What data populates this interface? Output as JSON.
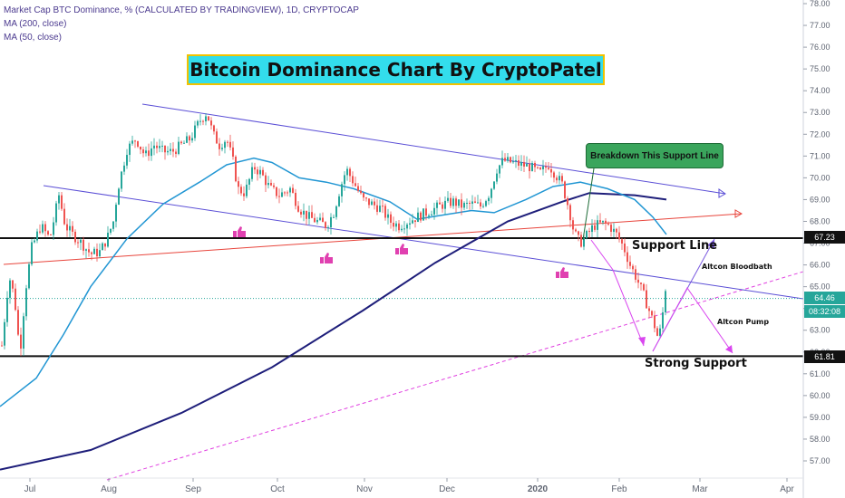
{
  "legend": {
    "symbol_line": "Market Cap BTC Dominance, % (CALCULATED BY TRADINGVIEW), 1D, CRYPTOCAP",
    "ma200": "MA (200, close)",
    "ma50": "MA (50, close)"
  },
  "title": "Bitcoin Dominance Chart By CryptoPatel",
  "annotations": {
    "breakdown": "Breakdown This Support Line",
    "support_line": "Support Line",
    "strong_support": "Strong Support",
    "altcoin_bloodbath": "Altcon Bloodbath",
    "altcoin_pump": "Altcon Pump"
  },
  "price_tags": {
    "resistance": "67.23",
    "current": "64.46",
    "countdown": "08:32:08",
    "support": "61.81"
  },
  "colors": {
    "up": "#26a69a",
    "down": "#ef5350",
    "ma200": "#1e1e7a",
    "ma50": "#2196d3",
    "channel": "#5b4fd6",
    "trend_red": "#e8453c",
    "dashed": "#e040e0",
    "arrows": "#d946ef",
    "title_bg": "#33ddec",
    "callout_bg": "#3aa55c",
    "thumb": "#e040b0"
  },
  "chart_data": {
    "type": "candlestick",
    "x_tick_labels": [
      "Jul",
      "Aug",
      "Sep",
      "Oct",
      "Nov",
      "Dec",
      "2020",
      "Feb",
      "Mar",
      "Apr"
    ],
    "y_tick_labels": [
      "78.00",
      "77.00",
      "76.00",
      "75.00",
      "74.00",
      "73.00",
      "72.00",
      "71.00",
      "70.00",
      "69.00",
      "68.00",
      "67.00",
      "66.00",
      "65.00",
      "64.00",
      "63.00",
      "62.00",
      "61.00",
      "60.00",
      "59.00",
      "58.00",
      "57.00"
    ],
    "ylim": [
      56.5,
      78.2
    ],
    "horizontal_levels": [
      67.23,
      61.81
    ],
    "last_price": 64.46,
    "close_path": [
      [
        0,
        61.5
      ],
      [
        5,
        63.5
      ],
      [
        10,
        65.5
      ],
      [
        16,
        64.5
      ],
      [
        22,
        61.9
      ],
      [
        28,
        64.8
      ],
      [
        35,
        66.8
      ],
      [
        45,
        67.8
      ],
      [
        55,
        67.2
      ],
      [
        65,
        69.2
      ],
      [
        72,
        67.8
      ],
      [
        80,
        67.4
      ],
      [
        90,
        67.0
      ],
      [
        100,
        66.5
      ],
      [
        110,
        66.6
      ],
      [
        118,
        67.2
      ],
      [
        125,
        68.0
      ],
      [
        130,
        69.5
      ],
      [
        140,
        71.3
      ],
      [
        150,
        71.8
      ],
      [
        160,
        71.0
      ],
      [
        170,
        71.5
      ],
      [
        180,
        71.2
      ],
      [
        190,
        71.2
      ],
      [
        200,
        71.5
      ],
      [
        210,
        71.8
      ],
      [
        220,
        72.6
      ],
      [
        228,
        73.0
      ],
      [
        235,
        72.0
      ],
      [
        242,
        71.5
      ],
      [
        250,
        71.8
      ],
      [
        258,
        70.6
      ],
      [
        262,
        69.5
      ],
      [
        270,
        69.3
      ],
      [
        280,
        70.5
      ],
      [
        288,
        70.2
      ],
      [
        298,
        69.5
      ],
      [
        308,
        69.2
      ],
      [
        320,
        69.5
      ],
      [
        330,
        68.6
      ],
      [
        340,
        68.2
      ],
      [
        350,
        68.0
      ],
      [
        360,
        67.8
      ],
      [
        368,
        68.4
      ],
      [
        375,
        69.5
      ],
      [
        382,
        70.4
      ],
      [
        390,
        69.8
      ],
      [
        400,
        69.0
      ],
      [
        410,
        68.8
      ],
      [
        420,
        68.6
      ],
      [
        430,
        68.0
      ],
      [
        440,
        67.8
      ],
      [
        450,
        68.0
      ],
      [
        460,
        68.2
      ],
      [
        470,
        68.4
      ],
      [
        480,
        68.6
      ],
      [
        490,
        68.8
      ],
      [
        500,
        68.9
      ],
      [
        510,
        68.7
      ],
      [
        520,
        68.8
      ],
      [
        530,
        68.7
      ],
      [
        540,
        69.3
      ],
      [
        548,
        70.4
      ],
      [
        555,
        70.8
      ],
      [
        565,
        70.7
      ],
      [
        575,
        70.6
      ],
      [
        585,
        70.5
      ],
      [
        595,
        70.2
      ],
      [
        605,
        70.6
      ],
      [
        612,
        70.2
      ],
      [
        620,
        69.7
      ],
      [
        628,
        68.5
      ],
      [
        633,
        67.5
      ],
      [
        640,
        67.0
      ],
      [
        648,
        67.4
      ],
      [
        655,
        67.8
      ],
      [
        665,
        67.9
      ],
      [
        672,
        67.8
      ],
      [
        680,
        67.4
      ],
      [
        688,
        66.8
      ],
      [
        695,
        66.0
      ],
      [
        702,
        65.4
      ],
      [
        710,
        64.6
      ],
      [
        716,
        63.9
      ],
      [
        722,
        63.2
      ],
      [
        726,
        62.6
      ],
      [
        730,
        63.3
      ],
      [
        733,
        64.8
      ],
      [
        736,
        65.2
      ]
    ],
    "series": [
      {
        "name": "MA (200, close)",
        "points": [
          [
            0,
            56.6
          ],
          [
            100,
            57.5
          ],
          [
            200,
            59.2
          ],
          [
            300,
            61.3
          ],
          [
            400,
            63.9
          ],
          [
            480,
            66.1
          ],
          [
            560,
            68.0
          ],
          [
            620,
            68.9
          ],
          [
            650,
            69.3
          ],
          [
            700,
            69.2
          ],
          [
            735,
            69.0
          ]
        ]
      },
      {
        "name": "MA (50, close)",
        "points": [
          [
            0,
            59.5
          ],
          [
            40,
            60.8
          ],
          [
            70,
            62.8
          ],
          [
            100,
            65.0
          ],
          [
            140,
            67.2
          ],
          [
            180,
            68.8
          ],
          [
            220,
            69.8
          ],
          [
            250,
            70.6
          ],
          [
            280,
            70.9
          ],
          [
            300,
            70.7
          ],
          [
            330,
            70.0
          ],
          [
            360,
            69.8
          ],
          [
            390,
            69.5
          ],
          [
            430,
            68.9
          ],
          [
            460,
            68.1
          ],
          [
            490,
            68.3
          ],
          [
            520,
            68.5
          ],
          [
            545,
            68.4
          ],
          [
            580,
            69.0
          ],
          [
            610,
            69.6
          ],
          [
            640,
            69.8
          ],
          [
            670,
            69.5
          ],
          [
            700,
            69.0
          ],
          [
            720,
            68.2
          ],
          [
            735,
            67.4
          ]
        ]
      }
    ]
  }
}
